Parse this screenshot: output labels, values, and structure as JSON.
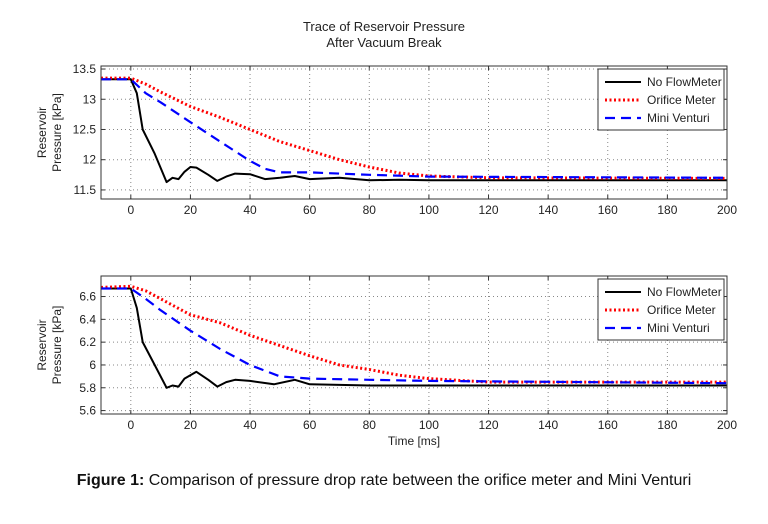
{
  "figure_title": [
    "Trace of Reservoir Pressure",
    "After Vacuum Break"
  ],
  "caption": {
    "label": "Figure 1:",
    "text": " Comparison of pressure drop rate between the orifice meter and Mini Venturi"
  },
  "colors": {
    "no_flowmeter": "#000000",
    "orifice_meter": "#ff0000",
    "mini_venturi": "#0000ff"
  },
  "chart_data": [
    {
      "type": "line",
      "title": "Trace of Reservoir Pressure After Vacuum Break",
      "xlabel": "",
      "ylabel": "Reservoir Pressure [kPa]",
      "xlim": [
        -10,
        200
      ],
      "ylim": [
        11.35,
        13.55
      ],
      "xticks": [
        0,
        20,
        40,
        60,
        80,
        100,
        120,
        140,
        160,
        180,
        200
      ],
      "yticks": [
        11.5,
        12,
        12.5,
        13,
        13.5
      ],
      "ytick_labels": [
        "11.5",
        "12",
        "12.5",
        "13",
        "13.5"
      ],
      "grid": true,
      "legend": "top-right",
      "series": [
        {
          "name": "No FlowMeter",
          "style": "solid",
          "color": "#000000",
          "x": [
            -10,
            0,
            2,
            4,
            8,
            12,
            14,
            16,
            18,
            20,
            22,
            26,
            29,
            32,
            35,
            40,
            45,
            50,
            55,
            60,
            70,
            80,
            90,
            100,
            200
          ],
          "y": [
            13.33,
            13.33,
            13.1,
            12.5,
            12.1,
            11.63,
            11.7,
            11.68,
            11.8,
            11.88,
            11.87,
            11.75,
            11.65,
            11.72,
            11.77,
            11.76,
            11.68,
            11.7,
            11.73,
            11.68,
            11.7,
            11.66,
            11.67,
            11.66,
            11.66
          ]
        },
        {
          "name": "Orifice Meter",
          "style": "dotted",
          "color": "#ff0000",
          "x": [
            -10,
            0,
            5,
            10,
            20,
            30,
            40,
            50,
            60,
            70,
            80,
            90,
            100,
            120,
            200
          ],
          "y": [
            13.35,
            13.35,
            13.25,
            13.12,
            12.88,
            12.7,
            12.5,
            12.3,
            12.15,
            12.0,
            11.88,
            11.78,
            11.73,
            11.7,
            11.69
          ]
        },
        {
          "name": "Mini Venturi",
          "style": "dashed",
          "color": "#0000ff",
          "x": [
            -10,
            0,
            5,
            10,
            20,
            30,
            40,
            45,
            50,
            60,
            80,
            100,
            200
          ],
          "y": [
            13.33,
            13.33,
            13.1,
            12.95,
            12.62,
            12.3,
            11.98,
            11.85,
            11.79,
            11.79,
            11.75,
            11.72,
            11.7
          ]
        }
      ]
    },
    {
      "type": "line",
      "title": "",
      "xlabel": "Time [ms]",
      "ylabel": "Reservoir Pressure [kPa]",
      "xlim": [
        -10,
        200
      ],
      "ylim": [
        5.57,
        6.78
      ],
      "xticks": [
        0,
        20,
        40,
        60,
        80,
        100,
        120,
        140,
        160,
        180,
        200
      ],
      "yticks": [
        5.6,
        5.8,
        6.0,
        6.2,
        6.4,
        6.6
      ],
      "ytick_labels": [
        "5.6",
        "5.8",
        "6",
        "6.2",
        "6.4",
        "6.6"
      ],
      "grid": true,
      "legend": "top-right",
      "series": [
        {
          "name": "No FlowMeter",
          "style": "solid",
          "color": "#000000",
          "x": [
            -10,
            0,
            2,
            4,
            8,
            12,
            14,
            16,
            18,
            22,
            26,
            29,
            32,
            35,
            40,
            48,
            55,
            60,
            80,
            200
          ],
          "y": [
            6.67,
            6.67,
            6.5,
            6.2,
            6.0,
            5.8,
            5.82,
            5.81,
            5.88,
            5.94,
            5.87,
            5.81,
            5.85,
            5.87,
            5.86,
            5.83,
            5.87,
            5.83,
            5.82,
            5.82
          ]
        },
        {
          "name": "Orifice Meter",
          "style": "dotted",
          "color": "#ff0000",
          "x": [
            -10,
            0,
            5,
            10,
            20,
            30,
            40,
            50,
            60,
            70,
            80,
            90,
            100,
            120,
            200
          ],
          "y": [
            6.68,
            6.69,
            6.65,
            6.58,
            6.44,
            6.37,
            6.26,
            6.17,
            6.08,
            6.0,
            5.96,
            5.91,
            5.88,
            5.85,
            5.85
          ]
        },
        {
          "name": "Mini Venturi",
          "style": "dashed",
          "color": "#0000ff",
          "x": [
            -10,
            0,
            5,
            10,
            20,
            30,
            40,
            50,
            60,
            80,
            100,
            200
          ],
          "y": [
            6.67,
            6.67,
            6.58,
            6.48,
            6.3,
            6.14,
            6.0,
            5.9,
            5.88,
            5.87,
            5.86,
            5.84
          ]
        }
      ]
    }
  ]
}
